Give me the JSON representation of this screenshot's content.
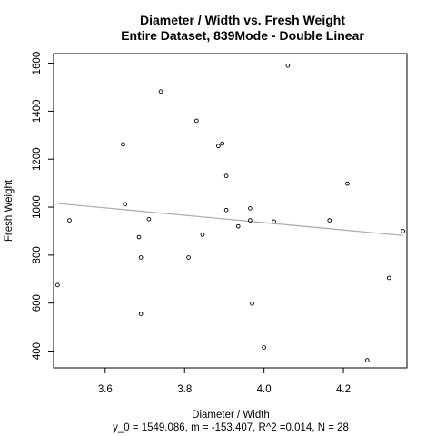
{
  "chart_data": {
    "type": "scatter",
    "title": "Diameter / Width vs. Fresh Weight",
    "subtitle": "Entire Dataset, 839Mode - Double Linear",
    "xlabel": "Diameter / Width",
    "ylabel": "Fresh Weight",
    "footnote": "y_0 = 1549.086, m = -153.407, R^2 =0.014, N = 28",
    "xlim": [
      3.47,
      4.36
    ],
    "ylim": [
      330,
      1640
    ],
    "xticks": [
      3.6,
      3.8,
      4.0,
      4.2
    ],
    "xtick_labels": [
      "3.6",
      "3.8",
      "4.0",
      "4.2"
    ],
    "yticks": [
      400,
      600,
      800,
      1000,
      1200,
      1400,
      1600
    ],
    "ytick_labels": [
      "400",
      "600",
      "800",
      "1000",
      "1200",
      "1400",
      "1600"
    ],
    "grid": false,
    "point_color": "#000000",
    "fit_line_color": "#b0b0b0",
    "points": [
      {
        "x": 3.48,
        "y": 675
      },
      {
        "x": 3.51,
        "y": 945
      },
      {
        "x": 3.645,
        "y": 1262
      },
      {
        "x": 3.65,
        "y": 1012
      },
      {
        "x": 3.685,
        "y": 875
      },
      {
        "x": 3.69,
        "y": 790
      },
      {
        "x": 3.69,
        "y": 555
      },
      {
        "x": 3.71,
        "y": 950
      },
      {
        "x": 3.74,
        "y": 1482
      },
      {
        "x": 3.81,
        "y": 790
      },
      {
        "x": 3.83,
        "y": 1360
      },
      {
        "x": 3.845,
        "y": 885
      },
      {
        "x": 3.885,
        "y": 1255
      },
      {
        "x": 3.895,
        "y": 1265
      },
      {
        "x": 3.905,
        "y": 1130
      },
      {
        "x": 3.905,
        "y": 988
      },
      {
        "x": 3.935,
        "y": 920
      },
      {
        "x": 3.965,
        "y": 995
      },
      {
        "x": 3.965,
        "y": 945
      },
      {
        "x": 3.97,
        "y": 598
      },
      {
        "x": 4.0,
        "y": 415
      },
      {
        "x": 4.025,
        "y": 940
      },
      {
        "x": 4.06,
        "y": 1590
      },
      {
        "x": 4.165,
        "y": 945
      },
      {
        "x": 4.21,
        "y": 1098
      },
      {
        "x": 4.26,
        "y": 362
      },
      {
        "x": 4.315,
        "y": 705
      },
      {
        "x": 4.35,
        "y": 900
      }
    ],
    "fit_line": {
      "intercept": 1549.086,
      "slope": -153.407,
      "x_range": [
        3.48,
        4.35
      ]
    }
  }
}
